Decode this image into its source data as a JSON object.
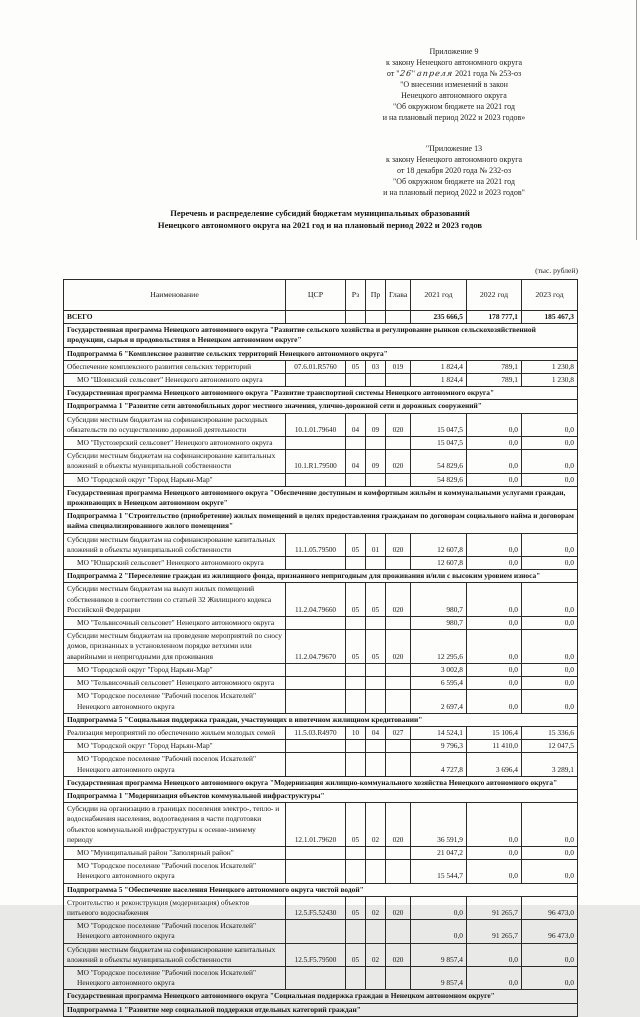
{
  "page": {
    "units_note": "(тыс. рублей)",
    "title_line1": "Перечень и распределение субсидий бюджетам муниципальных образований",
    "title_line2": "Ненецкого автономного округа на 2021 год и на плановый период 2022 и 2023 годов"
  },
  "ref_block_1": {
    "line1": "Приложение 9",
    "line2": "к закону Ненецкого автономного округа",
    "date_line": {
      "prefix": "от \"",
      "handwritten_day": "26",
      "mid": "\" ",
      "handwritten_month": "апреля",
      "suffix": " 2021 года № 253-оз"
    },
    "line4": "\"О внесении изменений в закон",
    "line5": "Ненецкого автономного округа",
    "line6": "\"Об окружном бюджете на 2021 год",
    "line7": "и на плановый период 2022 и 2023 годов»"
  },
  "ref_block_2": {
    "line1": "\"Приложение 13",
    "line2": "к закону Ненецкого автономного округа",
    "line3": "от 18 декабря 2020 года № 232-оз",
    "line4": "\"Об окружном бюджете на 2021 год",
    "line5": "и на плановый период 2022 и 2023 годов\""
  },
  "table": {
    "columns": [
      "Наименование",
      "ЦСР",
      "Рз",
      "Пр",
      "Глава",
      "2021 год",
      "2022 год",
      "2023 год"
    ],
    "rows": [
      {
        "type": "total",
        "name": "ВСЕГО",
        "csr": "",
        "rz": "",
        "pr": "",
        "glava": "",
        "y2021": "235 666,5",
        "y2022": "178 777,1",
        "y2023": "185 467,3"
      },
      {
        "type": "program",
        "name": "Государственная программа Ненецкого автономного округа \"Развитие сельского хозяйства и регулирование рынков сельскохозяйственной продукции, сырья и продовольствия в Ненецком автономном округе\""
      },
      {
        "type": "subprogram",
        "name": "Подпрограмма 6 \"Комплексное развитие сельских территорий Ненецкого автономного округа\""
      },
      {
        "type": "item",
        "name": "Обеспечение комплексного развития сельских территорий",
        "csr": "07.6.01.R5760",
        "rz": "05",
        "pr": "03",
        "glava": "019",
        "y2021": "1 824,4",
        "y2022": "789,1",
        "y2023": "1 230,8"
      },
      {
        "type": "mo",
        "name": "МО \"Шоинский сельсовет\" Ненецкого автономного округа",
        "y2021": "1 824,4",
        "y2022": "789,1",
        "y2023": "1 230,8"
      },
      {
        "type": "program",
        "name": "Государственная программа Ненецкого автономного округа \"Развитие транспортной системы Ненецкого автономного округа\""
      },
      {
        "type": "subprogram",
        "name": "Подпрограмма 1 \"Развитие сети автомобильных дорог местного значения, улично-дорожной сети и дорожных сооружений\""
      },
      {
        "type": "item",
        "name": "Субсидии местным бюджетам на софинансирование расходных обязательств по осуществлению дорожной деятельности",
        "csr": "10.1.01.79640",
        "rz": "04",
        "pr": "09",
        "glava": "020",
        "y2021": "15 047,5",
        "y2022": "0,0",
        "y2023": "0,0"
      },
      {
        "type": "mo",
        "name": "МО \"Пустозерский сельсовет\" Ненецкого автономного округа",
        "y2021": "15 047,5",
        "y2022": "0,0",
        "y2023": "0,0"
      },
      {
        "type": "item",
        "name": "Субсидии местным бюджетам на софинансирование капитальных вложений в объекты муниципальной собственности",
        "csr": "10.1.R1.79500",
        "rz": "04",
        "pr": "09",
        "glava": "020",
        "y2021": "54 829,6",
        "y2022": "0,0",
        "y2023": "0,0"
      },
      {
        "type": "mo",
        "name": "МО \"Городской округ \"Город Нарьян-Мар\"",
        "y2021": "54 829,6",
        "y2022": "0,0",
        "y2023": "0,0"
      },
      {
        "type": "program",
        "name": "Государственная программа Ненецкого автономного округа \"Обеспечение доступным и комфортным жильём и коммунальными услугами граждан, проживающих в Ненецком автономном округе\""
      },
      {
        "type": "subprogram",
        "name": "Подпрограмма 1 \"Строительство (приобретение) жилых помещений в целях предоставления гражданам по договорам социального найма и договорам найма специализированного жилого помещения\""
      },
      {
        "type": "item",
        "name": "Субсидии местным бюджетам на софинансирование капитальных вложений в объекты муниципальной собственности",
        "csr": "11.1.05.79500",
        "rz": "05",
        "pr": "01",
        "glava": "020",
        "y2021": "12 607,8",
        "y2022": "0,0",
        "y2023": "0,0"
      },
      {
        "type": "mo",
        "name": "МО \"Юшарский сельсовет\" Ненецкого автономного округа",
        "y2021": "12 607,8",
        "y2022": "0,0",
        "y2023": "0,0"
      },
      {
        "type": "subprogram",
        "name": "Подпрограмма 2 \"Переселение граждан из жилищного фонда, признанного непригодным для проживания и/или с высоким уровнем износа\""
      },
      {
        "type": "item",
        "name": "Субсидии местным бюджетам на выкуп жилых помещений собственников в соответствии со статьей 32 Жилищного кодекса Российской Федерации",
        "csr": "11.2.04.79660",
        "rz": "05",
        "pr": "05",
        "glava": "020",
        "y2021": "980,7",
        "y2022": "0,0",
        "y2023": "0,0"
      },
      {
        "type": "mo",
        "name": "МО \"Тельвисочный сельсовет\" Ненецкого автономного округа",
        "y2021": "980,7",
        "y2022": "0,0",
        "y2023": "0,0"
      },
      {
        "type": "item",
        "name": "Субсидии местным бюджетам на проведение мероприятий по сносу домов, признанных в установленном порядке ветхими или аварийными и непригодными для проживания",
        "csr": "11.2.04.79670",
        "rz": "05",
        "pr": "05",
        "glava": "020",
        "y2021": "12 295,6",
        "y2022": "0,0",
        "y2023": "0,0"
      },
      {
        "type": "mo",
        "name": "МО \"Городской округ \"Город Нарьян-Мар\"",
        "y2021": "3 002,8",
        "y2022": "0,0",
        "y2023": "0,0"
      },
      {
        "type": "mo",
        "name": "МО \"Тельвисочный сельсовет\" Ненецкого автономного округа",
        "y2021": "6 595,4",
        "y2022": "0,0",
        "y2023": "0,0"
      },
      {
        "type": "mo",
        "name": "МО \"Городское поселение \"Рабочий поселок Искателей\" Ненецкого автономного округа",
        "y2021": "2 697,4",
        "y2022": "0,0",
        "y2023": "0,0"
      },
      {
        "type": "subprogram",
        "name": "Подпрограмма 5 \"Социальная поддержка граждан, участвующих в ипотечном жилищном кредитовании\""
      },
      {
        "type": "item",
        "name": "Реализация мероприятий по обеспечению жильем молодых семей",
        "csr": "11.5.03.R4970",
        "rz": "10",
        "pr": "04",
        "glava": "027",
        "y2021": "14 524,1",
        "y2022": "15 106,4",
        "y2023": "15 336,6"
      },
      {
        "type": "mo",
        "name": "МО \"Городской округ \"Город Нарьян-Мар\"",
        "y2021": "9 796,3",
        "y2022": "11 410,0",
        "y2023": "12 047,5"
      },
      {
        "type": "mo",
        "name": "МО \"Городское поселение \"Рабочий поселок Искателей\" Ненецкого автономного округа",
        "y2021": "4 727,8",
        "y2022": "3 696,4",
        "y2023": "3 289,1"
      },
      {
        "type": "program",
        "name": "Государственная программа Ненецкого автономного округа \"Модернизация жилищно-коммунального хозяйства Ненецкого автономного округа\""
      },
      {
        "type": "subprogram",
        "name": "Подпрограмма 1 \"Модернизация объектов коммунальной инфраструктуры\""
      },
      {
        "type": "item",
        "name": "Субсидии на организацию в границах поселения электро-, тепло- и водоснабжения населения, водоотведения в части подготовки объектов коммунальной инфраструктуры к осенне-зимнему периоду",
        "csr": "12.1.01.79620",
        "rz": "05",
        "pr": "02",
        "glava": "020",
        "y2021": "36 591,9",
        "y2022": "0,0",
        "y2023": "0,0"
      },
      {
        "type": "mo",
        "name": "МО \"Муниципальный район \"Заполярный район\"",
        "y2021": "21 047,2",
        "y2022": "0,0",
        "y2023": "0,0"
      },
      {
        "type": "mo",
        "name": "МО \"Городское поселение \"Рабочий поселок Искателей\" Ненецкого автономного округа",
        "y2021": "15 544,7",
        "y2022": "0,0",
        "y2023": "0,0"
      },
      {
        "type": "subprogram",
        "name": "Подпрограмма 5 \"Обеспечение населения Ненецкого автономного округа чистой водой\""
      },
      {
        "type": "item",
        "name": "Строительство и реконструкция (модернизация) объектов питьевого водоснабжения",
        "csr": "12.5.F5.52430",
        "rz": "05",
        "pr": "02",
        "glava": "020",
        "y2021": "0,0",
        "y2022": "91 265,7",
        "y2023": "96 473,0"
      },
      {
        "type": "mo",
        "name": "МО \"Городское поселение \"Рабочий поселок Искателей\" Ненецкого автономного округа",
        "y2021": "0,0",
        "y2022": "91 265,7",
        "y2023": "96 473,0"
      },
      {
        "type": "item",
        "name": "Субсидии местным бюджетам на софинансирование капитальных вложений в объекты муниципальной собственности",
        "csr": "12.5.F5.79500",
        "rz": "05",
        "pr": "02",
        "glava": "020",
        "y2021": "9 857,4",
        "y2022": "0,0",
        "y2023": "0,0"
      },
      {
        "type": "mo",
        "name": "МО \"Городское поселение \"Рабочий поселок Искателей\" Ненецкого автономного округа",
        "y2021": "9 857,4",
        "y2022": "0,0",
        "y2023": "0,0"
      },
      {
        "type": "program",
        "name": "Государственная программа Ненецкого автономного округа \"Социальная поддержка граждан в Ненецком автономном округе\""
      },
      {
        "type": "subprogram",
        "name": "Подпрограмма 1 \"Развитие мер социальной поддержки отдельных категорий граждан\""
      }
    ]
  }
}
